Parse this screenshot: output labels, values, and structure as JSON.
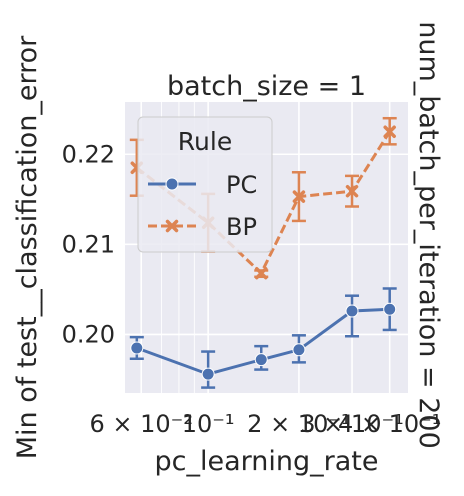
{
  "chart_data": {
    "type": "line",
    "title": "batch_size = 1",
    "xlabel": "pc_learning_rate",
    "ylabel": "Min of test__classification_error",
    "right_label": "num_batch_per_iteration = 200",
    "xscale": "log",
    "xlim": [
      0.053,
      0.46
    ],
    "ylim": [
      0.1935,
      0.2258
    ],
    "grid": true,
    "x_ticks": [
      {
        "value": 0.06,
        "label": "6 × 10⁻²"
      },
      {
        "value": 0.1,
        "label": "10⁻¹"
      },
      {
        "value": 0.2,
        "label": "2 × 10⁻¹"
      },
      {
        "value": 0.3,
        "label": "3 × 10⁻¹"
      },
      {
        "value": 0.4,
        "label": "4 × 10⁻¹"
      }
    ],
    "y_ticks": [
      {
        "value": 0.2,
        "label": "0.20"
      },
      {
        "value": 0.21,
        "label": "0.21"
      },
      {
        "value": 0.22,
        "label": "0.22"
      }
    ],
    "legend": {
      "title": "Rule",
      "placement": "upper-left"
    },
    "series": [
      {
        "name": "PC",
        "color": "#4c72b0",
        "marker": "circle",
        "linestyle": "solid",
        "points": [
          {
            "x": 0.058,
            "y": 0.1985,
            "lo": 0.1973,
            "hi": 0.1997
          },
          {
            "x": 0.1,
            "y": 0.1956,
            "lo": 0.1941,
            "hi": 0.1981
          },
          {
            "x": 0.15,
            "y": 0.1972,
            "lo": 0.1961,
            "hi": 0.1987
          },
          {
            "x": 0.2,
            "y": 0.1983,
            "lo": 0.1969,
            "hi": 0.1999
          },
          {
            "x": 0.3,
            "y": 0.2026,
            "lo": 0.1998,
            "hi": 0.2043
          },
          {
            "x": 0.4,
            "y": 0.2028,
            "lo": 0.2005,
            "hi": 0.2051
          }
        ]
      },
      {
        "name": "BP",
        "color": "#dd8452",
        "marker": "x",
        "linestyle": "dashed",
        "points": [
          {
            "x": 0.058,
            "y": 0.2185,
            "lo": 0.2154,
            "hi": 0.2216
          },
          {
            "x": 0.1,
            "y": 0.2124,
            "lo": 0.2092,
            "hi": 0.2156
          },
          {
            "x": 0.15,
            "y": 0.2068,
            "lo": 0.2064,
            "hi": 0.2071
          },
          {
            "x": 0.2,
            "y": 0.2153,
            "lo": 0.2126,
            "hi": 0.218
          },
          {
            "x": 0.3,
            "y": 0.2159,
            "lo": 0.2142,
            "hi": 0.2176
          },
          {
            "x": 0.4,
            "y": 0.2225,
            "lo": 0.2211,
            "hi": 0.224
          }
        ]
      }
    ]
  }
}
